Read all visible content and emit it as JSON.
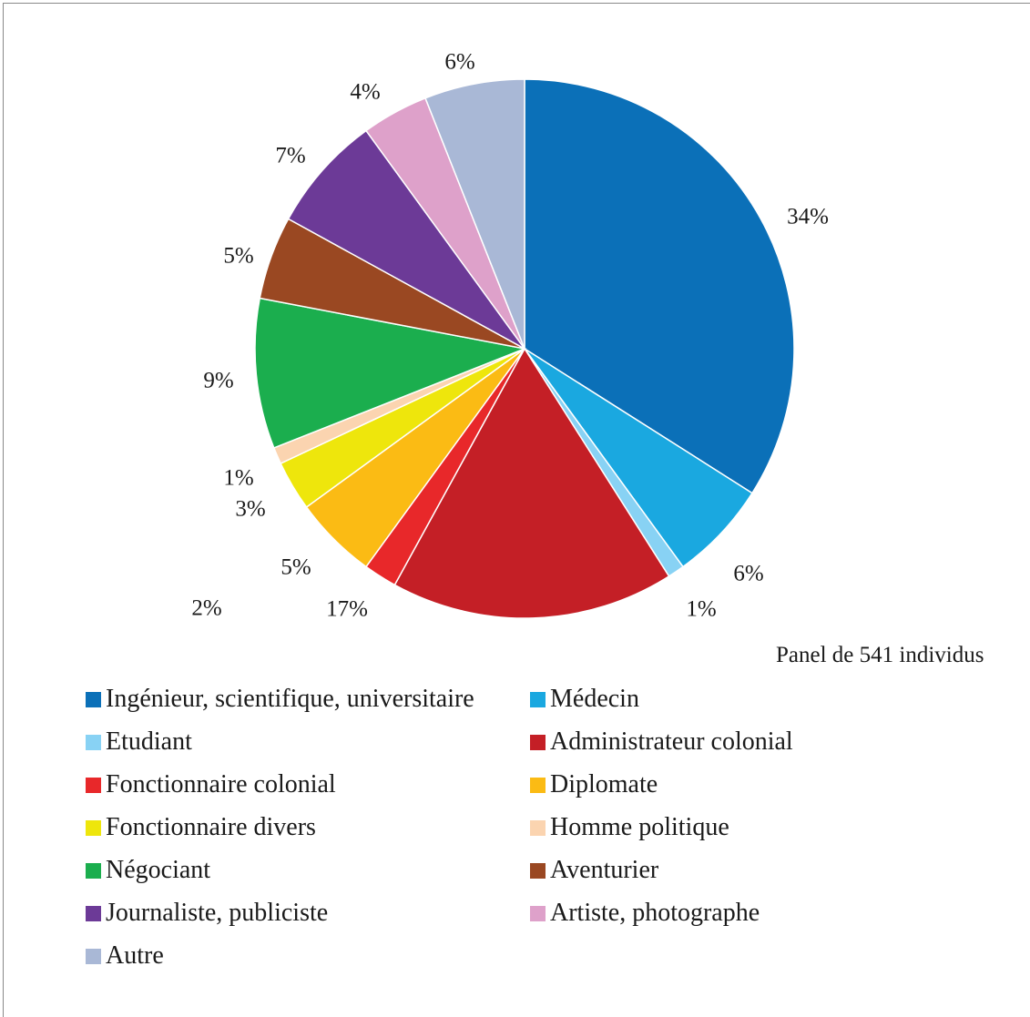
{
  "chart_data": {
    "type": "pie",
    "note": "Panel de 541 individus",
    "start_angle_deg": 0,
    "direction": "clockwise",
    "slices": [
      {
        "label": "Ingénieur, scientifique, universitaire",
        "value": 34,
        "value_label": "34%",
        "color": "#0b70b8"
      },
      {
        "label": "Médecin",
        "value": 6,
        "value_label": "6%",
        "color": "#1aa8e0"
      },
      {
        "label": "Etudiant",
        "value": 1,
        "value_label": "1%",
        "color": "#88d2f4"
      },
      {
        "label": "Administrateur colonial",
        "value": 17,
        "value_label": "17%",
        "color": "#c41f26"
      },
      {
        "label": "Fonctionnaire colonial",
        "value": 2,
        "value_label": "2%",
        "color": "#e8282a"
      },
      {
        "label": "Diplomate",
        "value": 5,
        "value_label": "5%",
        "color": "#fbbb14"
      },
      {
        "label": "Fonctionnaire divers",
        "value": 3,
        "value_label": "3%",
        "color": "#eee60c"
      },
      {
        "label": "Homme politique",
        "value": 1,
        "value_label": "1%",
        "color": "#fbd4b0"
      },
      {
        "label": "Négociant",
        "value": 9,
        "value_label": "9%",
        "color": "#1bae4e"
      },
      {
        "label": "Aventurier",
        "value": 5,
        "value_label": "5%",
        "color": "#9a4822"
      },
      {
        "label": "Journaliste, publiciste",
        "value": 7,
        "value_label": "7%",
        "color": "#6c3a97"
      },
      {
        "label": "Artiste, photographe",
        "value": 4,
        "value_label": "4%",
        "color": "#dea1ca"
      },
      {
        "label": "Autre",
        "value": 6,
        "value_label": "6%",
        "color": "#a9b8d6"
      }
    ],
    "legend_position": "bottom"
  }
}
